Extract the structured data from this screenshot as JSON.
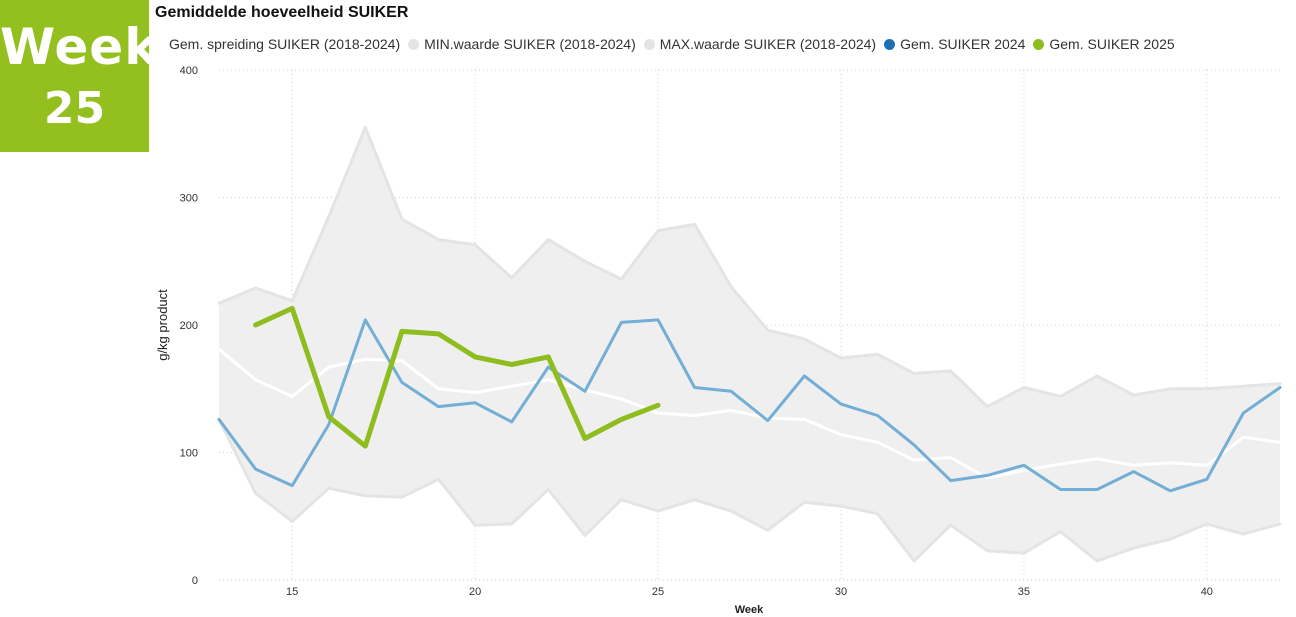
{
  "badge": {
    "line1": "Week",
    "line2": "25"
  },
  "colors": {
    "badge_bg": "#93c01f",
    "band_fill": "#efefef",
    "band_edge": "#e4e4e4",
    "avg_line": "#ffffff",
    "series_2024": "#72aed6",
    "legend_2024_dot": "#1b6fb5",
    "series_2025": "#8dbd1e"
  },
  "chart_data": {
    "type": "line",
    "title": "Gemiddelde hoeveelheid SUIKER",
    "xlabel": "Week",
    "ylabel": "g/kg product",
    "xlim": [
      13,
      42
    ],
    "ylim": [
      0,
      400
    ],
    "xticks": [
      15,
      20,
      25,
      30,
      35,
      40
    ],
    "yticks": [
      0,
      100,
      200,
      300,
      400
    ],
    "grid": true,
    "legend_position": "top",
    "legend": [
      {
        "label": "Gem. spreiding SUIKER (2018-2024)",
        "color": "#ffffff",
        "marker": "none"
      },
      {
        "label": "MIN.waarde SUIKER (2018-2024)",
        "color": "#e4e4e4",
        "marker": "dot"
      },
      {
        "label": "MAX.waarde SUIKER (2018-2024)",
        "color": "#e4e4e4",
        "marker": "dot"
      },
      {
        "label": "Gem. SUIKER 2024",
        "color": "#1b6fb5",
        "marker": "dot"
      },
      {
        "label": "Gem. SUIKER 2025",
        "color": "#8dbd1e",
        "marker": "dot"
      }
    ],
    "x": [
      13,
      14,
      15,
      16,
      17,
      18,
      19,
      20,
      21,
      22,
      23,
      24,
      25,
      26,
      27,
      28,
      29,
      30,
      31,
      32,
      33,
      34,
      35,
      36,
      37,
      38,
      39,
      40,
      41,
      42
    ],
    "series": [
      {
        "name": "MIN.waarde SUIKER (2018-2024)",
        "values": [
          126,
          68,
          46,
          72,
          66,
          65,
          79,
          43,
          44,
          71,
          35,
          63,
          54,
          63,
          54,
          39,
          61,
          58,
          52,
          15,
          43,
          23,
          21,
          38,
          15,
          25,
          32,
          44,
          36,
          44
        ]
      },
      {
        "name": "MAX.waarde SUIKER (2018-2024)",
        "values": [
          217,
          229,
          219,
          285,
          355,
          283,
          267,
          263,
          237,
          267,
          250,
          236,
          274,
          279,
          230,
          196,
          189,
          174,
          177,
          162,
          164,
          136,
          151,
          144,
          160,
          145,
          150,
          150,
          152,
          154
        ]
      },
      {
        "name": "Gem. spreiding SUIKER (2018-2024)",
        "values": [
          181,
          157,
          144,
          167,
          173,
          172,
          150,
          147,
          152,
          157,
          149,
          142,
          131,
          129,
          133,
          127,
          126,
          114,
          108,
          94,
          96,
          80,
          86,
          91,
          95,
          90,
          92,
          90,
          112,
          108
        ]
      },
      {
        "name": "Gem. SUIKER 2024",
        "values": [
          126,
          87,
          74,
          122,
          204,
          155,
          136,
          139,
          124,
          167,
          148,
          202,
          204,
          151,
          148,
          125,
          160,
          138,
          129,
          106,
          78,
          82,
          90,
          71,
          71,
          85,
          70,
          79,
          131,
          151
        ]
      },
      {
        "name": "Gem. SUIKER 2025",
        "x": [
          14,
          15,
          16,
          17,
          18,
          19,
          20,
          21,
          22,
          23,
          24,
          25
        ],
        "values": [
          200,
          213,
          128,
          105,
          195,
          193,
          175,
          169,
          175,
          111,
          126,
          137
        ]
      }
    ]
  }
}
